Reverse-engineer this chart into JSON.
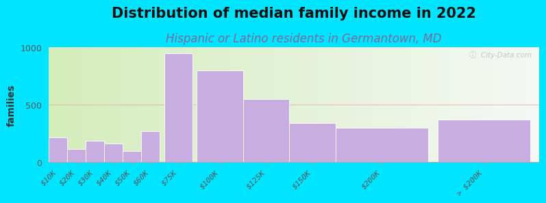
{
  "title": "Distribution of median family income in 2022",
  "subtitle": "Hispanic or Latino residents in Germantown, MD",
  "ylabel": "families",
  "categories": [
    "$10K",
    "$20K",
    "$30K",
    "$40K",
    "$50K",
    "$60K",
    "$75K",
    "$100K",
    "$125K",
    "$150K",
    "$200K",
    "> $200K"
  ],
  "values": [
    220,
    115,
    185,
    165,
    100,
    270,
    950,
    800,
    550,
    340,
    300,
    370
  ],
  "bar_widths": [
    1,
    1,
    1,
    1,
    1,
    1,
    1.5,
    2.5,
    2.5,
    2.5,
    5,
    5
  ],
  "bar_positions": [
    0.5,
    1.5,
    2.5,
    3.5,
    4.5,
    5.5,
    7.0,
    9.25,
    11.75,
    14.25,
    18.0,
    23.5
  ],
  "bar_color": "#c8aee0",
  "bg_color": "#00e5ff",
  "gradient_left": "#d4edbb",
  "gradient_right": "#f0f5f0",
  "title_fontsize": 15,
  "subtitle_fontsize": 12,
  "ylabel_fontsize": 10,
  "tick_fontsize": 8,
  "ylim": [
    0,
    1000
  ],
  "yticks": [
    0,
    500,
    1000
  ],
  "watermark": "ⓘ  City-Data.com",
  "subtitle_color": "#7a6b9a",
  "grid_color": "#e0a0a0"
}
